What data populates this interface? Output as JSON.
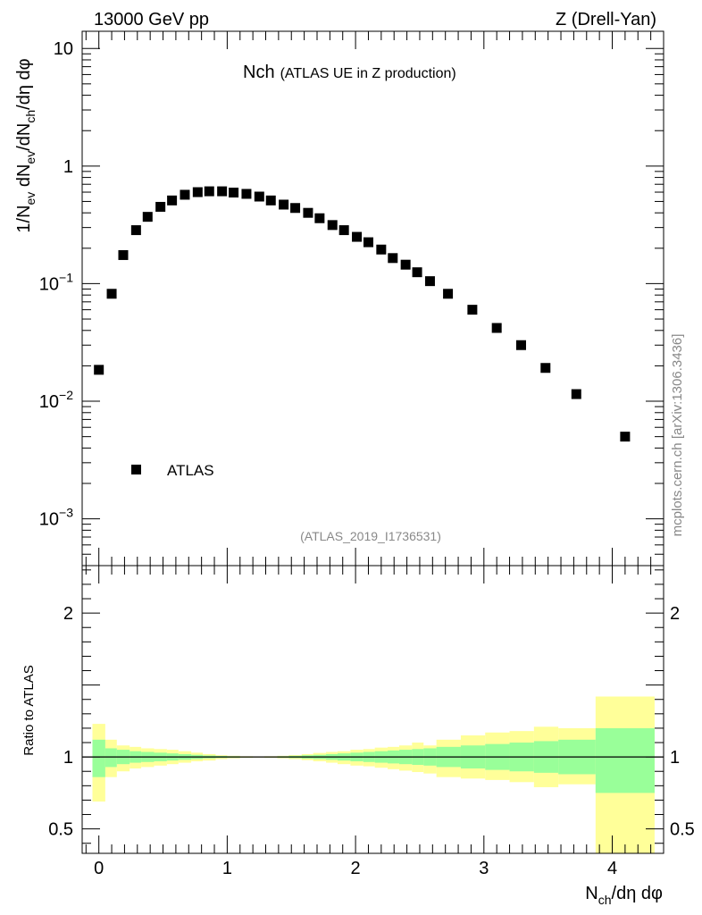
{
  "header": {
    "left_label": "13000 GeV pp",
    "right_label": "Z (Drell-Yan)"
  },
  "side_label": "mcplots.cern.ch [arXiv:1306.3436]",
  "chart_data": {
    "type": "scatter",
    "title": "Nch",
    "subtitle": "(ATLAS UE in Z production)",
    "analysis_id": "(ATLAS_2019_I1736531)",
    "xlabel": {
      "main": "N",
      "sub": "ch",
      "rest": "/dη dφ"
    },
    "ylabel": {
      "p1": "1/N",
      "s1": "ev",
      "p2": " dN",
      "s2": "ev",
      "p3": "/dN",
      "s3": "ch",
      "p4": "/dη dφ"
    },
    "ratio_ylabel": "Ratio to ATLAS",
    "legend": {
      "label": "ATLAS",
      "placement": "lower-left"
    },
    "xlim": [
      -0.13,
      4.4
    ],
    "ylim_log": [
      0.0004,
      14
    ],
    "ratio_ylim": [
      0.33,
      2.33
    ],
    "x_ticks": [
      {
        "value": 0,
        "label": "0"
      },
      {
        "value": 1,
        "label": "1"
      },
      {
        "value": 2,
        "label": "2"
      },
      {
        "value": 3,
        "label": "3"
      },
      {
        "value": 4,
        "label": "4"
      }
    ],
    "y_ticks": [
      {
        "value": 10,
        "base": "10",
        "exp": ""
      },
      {
        "value": 1,
        "base": "1",
        "exp": ""
      },
      {
        "value": 0.1,
        "base": "10",
        "exp": "−1"
      },
      {
        "value": 0.01,
        "base": "10",
        "exp": "−2"
      },
      {
        "value": 0.001,
        "base": "10",
        "exp": "−3"
      }
    ],
    "ratio_ticks": [
      {
        "value": 2,
        "label": "2"
      },
      {
        "value": 1,
        "label": "1"
      },
      {
        "value": 0.5,
        "label": "0.5"
      }
    ],
    "series": [
      {
        "name": "ATLAS",
        "marker": "square",
        "x": [
          0.0,
          0.1,
          0.19,
          0.29,
          0.38,
          0.48,
          0.57,
          0.67,
          0.77,
          0.86,
          0.96,
          1.05,
          1.15,
          1.25,
          1.34,
          1.44,
          1.53,
          1.63,
          1.72,
          1.82,
          1.91,
          2.01,
          2.1,
          2.2,
          2.29,
          2.39,
          2.48,
          2.58,
          2.72,
          2.91,
          3.1,
          3.29,
          3.48,
          3.72,
          4.1
        ],
        "y": [
          0.0185,
          0.082,
          0.175,
          0.285,
          0.37,
          0.45,
          0.51,
          0.57,
          0.6,
          0.61,
          0.61,
          0.595,
          0.58,
          0.55,
          0.51,
          0.47,
          0.44,
          0.4,
          0.36,
          0.315,
          0.285,
          0.25,
          0.225,
          0.195,
          0.165,
          0.145,
          0.125,
          0.105,
          0.082,
          0.06,
          0.042,
          0.03,
          0.0192,
          0.0115,
          0.005
        ]
      }
    ],
    "ratio_bands": {
      "edges": [
        -0.05,
        0.05,
        0.14,
        0.24,
        0.33,
        0.43,
        0.53,
        0.62,
        0.72,
        0.81,
        0.91,
        1.0,
        1.1,
        1.2,
        1.29,
        1.39,
        1.48,
        1.58,
        1.67,
        1.77,
        1.86,
        1.96,
        2.06,
        2.15,
        2.25,
        2.34,
        2.44,
        2.53,
        2.63,
        2.82,
        3.01,
        3.2,
        3.39,
        3.58,
        3.87,
        4.33
      ],
      "inner_lo": [
        0.86,
        0.93,
        0.95,
        0.96,
        0.965,
        0.97,
        0.975,
        0.98,
        0.985,
        0.99,
        0.993,
        0.995,
        0.997,
        0.998,
        0.997,
        0.995,
        0.992,
        0.988,
        0.985,
        0.98,
        0.975,
        0.97,
        0.965,
        0.96,
        0.955,
        0.95,
        0.945,
        0.94,
        0.93,
        0.92,
        0.91,
        0.9,
        0.89,
        0.88,
        0.75
      ],
      "inner_hi": [
        1.12,
        1.06,
        1.05,
        1.04,
        1.035,
        1.03,
        1.025,
        1.02,
        1.015,
        1.01,
        1.007,
        1.005,
        1.003,
        1.002,
        1.003,
        1.005,
        1.008,
        1.012,
        1.015,
        1.02,
        1.025,
        1.03,
        1.035,
        1.04,
        1.045,
        1.05,
        1.055,
        1.06,
        1.07,
        1.08,
        1.09,
        1.1,
        1.11,
        1.12,
        1.2
      ],
      "outer_lo": [
        0.69,
        0.86,
        0.9,
        0.92,
        0.93,
        0.94,
        0.95,
        0.96,
        0.97,
        0.975,
        0.985,
        0.99,
        0.994,
        0.996,
        0.994,
        0.99,
        0.985,
        0.978,
        0.97,
        0.96,
        0.95,
        0.94,
        0.935,
        0.925,
        0.915,
        0.905,
        0.895,
        0.885,
        0.86,
        0.85,
        0.84,
        0.825,
        0.79,
        0.81,
        0.3
      ],
      "outer_hi": [
        1.23,
        1.12,
        1.08,
        1.07,
        1.06,
        1.055,
        1.05,
        1.04,
        1.03,
        1.02,
        1.012,
        1.008,
        1.005,
        1.004,
        1.005,
        1.008,
        1.013,
        1.02,
        1.028,
        1.035,
        1.04,
        1.05,
        1.055,
        1.065,
        1.07,
        1.08,
        1.1,
        1.08,
        1.12,
        1.15,
        1.17,
        1.18,
        1.21,
        1.2,
        1.42
      ]
    },
    "colors": {
      "inner_band": "#99ff99",
      "outer_band": "#ffff99",
      "marker": "#000000",
      "line": "#000000"
    }
  }
}
